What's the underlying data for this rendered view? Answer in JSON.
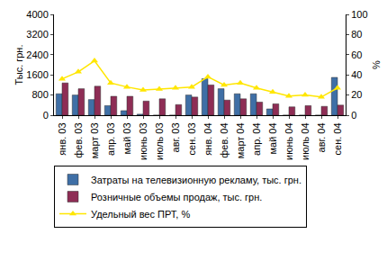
{
  "chart_data": {
    "type": "bar",
    "categories": [
      "янв. 03",
      "фев. 03",
      "март 03",
      "апр. 03",
      "май 03",
      "июнь 03",
      "июль 03",
      "авг. 03",
      "сен. 03",
      "янв. 04",
      "фев. 04",
      "март 04",
      "апр. 04",
      "май 04",
      "июнь 04",
      "июль 04",
      "авг. 04",
      "сен. 04"
    ],
    "y_label": "Тыс. грн.",
    "y2_label": "%",
    "ylim": [
      0,
      4000
    ],
    "yticks": [
      0,
      800,
      1600,
      2400,
      3200,
      4000
    ],
    "y2lim": [
      0,
      100
    ],
    "y2ticks": [
      0,
      20,
      40,
      60,
      80,
      100
    ],
    "grid": false,
    "legend": "bottom",
    "series": [
      {
        "name": "Затраты на телевизионную рекламу, тыс. грн.",
        "type": "bar",
        "color": "#3f6fa6",
        "values": [
          850,
          800,
          620,
          380,
          180,
          40,
          0,
          0,
          800,
          1450,
          1050,
          850,
          850,
          250,
          0,
          0,
          0,
          1500
        ]
      },
      {
        "name": "Розничные объемы продаж, тыс. грн.",
        "type": "bar",
        "color": "#8e2d55",
        "values": [
          1280,
          1050,
          1150,
          750,
          750,
          560,
          650,
          420,
          720,
          1200,
          600,
          650,
          520,
          450,
          330,
          380,
          350,
          400
        ]
      },
      {
        "name": "Удельный вес ПРТ, %",
        "type": "line",
        "axis": "y2",
        "color": "#ffe600",
        "marker": "triangle-up",
        "line_style": "solid",
        "values": [
          36,
          43,
          54,
          32,
          28,
          25,
          26,
          27,
          28,
          38,
          30,
          32,
          27,
          23,
          19,
          20,
          18,
          27
        ]
      }
    ]
  }
}
